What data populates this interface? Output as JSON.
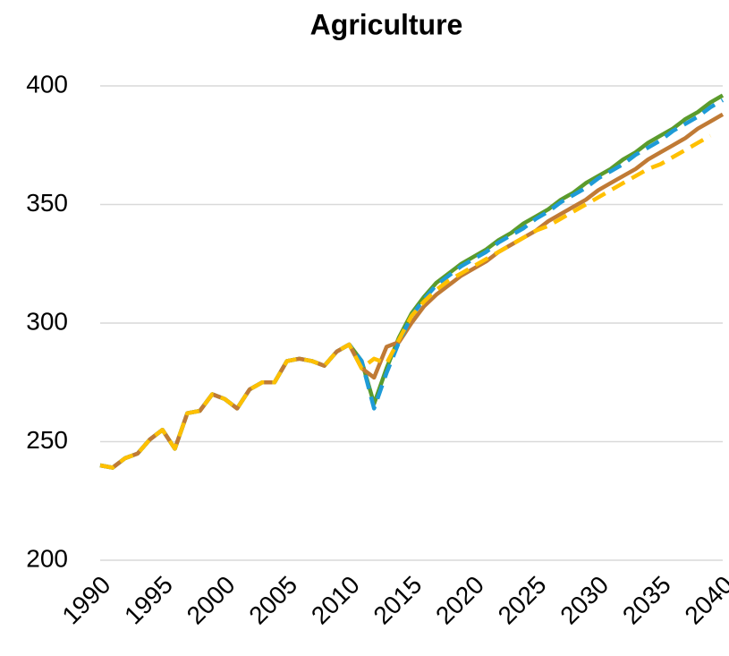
{
  "chart_data": {
    "type": "line",
    "title": "Agriculture",
    "x": [
      1990,
      1991,
      1992,
      1993,
      1994,
      1995,
      1996,
      1997,
      1998,
      1999,
      2000,
      2001,
      2002,
      2003,
      2004,
      2005,
      2006,
      2007,
      2008,
      2009,
      2010,
      2011,
      2012,
      2013,
      2014,
      2015,
      2016,
      2017,
      2018,
      2019,
      2020,
      2021,
      2022,
      2023,
      2024,
      2025,
      2026,
      2027,
      2028,
      2029,
      2030,
      2031,
      2032,
      2033,
      2034,
      2035,
      2036,
      2037,
      2038,
      2039,
      2040
    ],
    "series": [
      {
        "color": "#5b9b2c",
        "dash": false,
        "values": [
          240,
          239,
          243,
          245,
          251,
          255,
          247,
          262,
          263,
          270,
          268,
          264,
          272,
          275,
          275,
          284,
          285,
          284,
          282,
          288,
          291,
          284,
          266,
          281,
          294,
          304,
          311,
          317,
          321,
          325,
          328,
          331,
          335,
          338,
          342,
          345,
          348,
          352,
          355,
          359,
          362,
          365,
          369,
          372,
          376,
          379,
          382,
          386,
          389,
          393,
          396
        ]
      },
      {
        "color": "#c07a35",
        "dash": false,
        "values": [
          240,
          239,
          243,
          245,
          251,
          255,
          247,
          262,
          263,
          270,
          268,
          264,
          272,
          275,
          275,
          284,
          285,
          284,
          282,
          288,
          291,
          281,
          277,
          290,
          292,
          300,
          307,
          312,
          316,
          320,
          323,
          326,
          330,
          333,
          336,
          339,
          343,
          346,
          349,
          352,
          356,
          359,
          362,
          365,
          369,
          372,
          375,
          378,
          382,
          385,
          388
        ]
      },
      {
        "color": "#1e9bd7",
        "dash": true,
        "values": [
          240,
          239,
          243,
          245,
          251,
          255,
          247,
          262,
          263,
          270,
          268,
          264,
          272,
          275,
          275,
          284,
          285,
          284,
          282,
          288,
          291,
          284,
          264,
          279,
          292,
          303,
          310,
          316,
          320,
          324,
          327,
          330,
          334,
          337,
          340,
          344,
          347,
          351,
          354,
          357,
          361,
          364,
          367,
          371,
          374,
          377,
          381,
          384,
          387,
          391,
          394
        ]
      },
      {
        "color": "#ffc000",
        "dash": true,
        "values": [
          240,
          239,
          243,
          245,
          251,
          255,
          247,
          262,
          263,
          270,
          268,
          264,
          272,
          275,
          275,
          284,
          285,
          284,
          282,
          288,
          291,
          281,
          285,
          283,
          293,
          303,
          309,
          314,
          318,
          321,
          324,
          327,
          330,
          333,
          336,
          339,
          341,
          344,
          347,
          350,
          353,
          356,
          359,
          362,
          365,
          367,
          370,
          373,
          376,
          379,
          null
        ]
      }
    ],
    "xlim": [
      1990,
      2040
    ],
    "xticks": [
      1990,
      1995,
      2000,
      2005,
      2010,
      2015,
      2020,
      2025,
      2030,
      2035,
      2040
    ],
    "ylim": [
      200,
      400
    ],
    "yticks": [
      200,
      250,
      300,
      350,
      400
    ],
    "grid": true
  }
}
